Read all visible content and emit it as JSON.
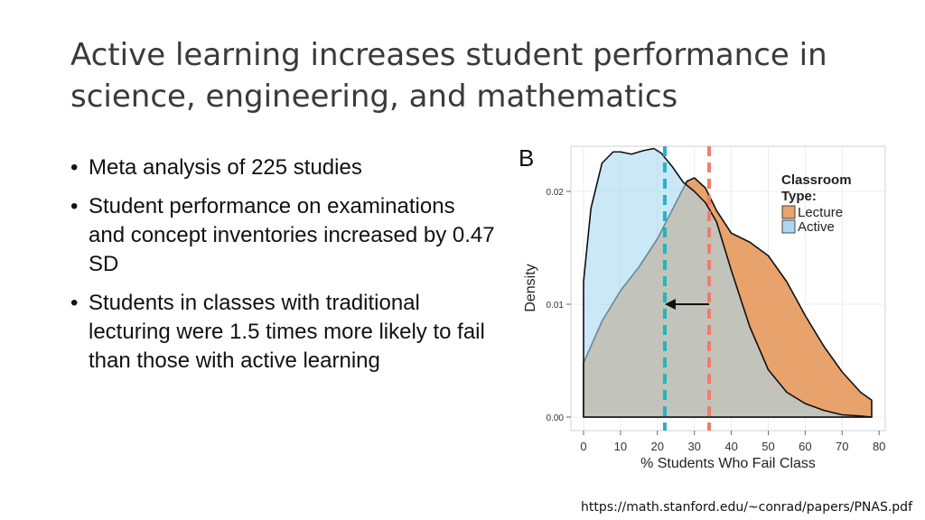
{
  "slide": {
    "title_line1": "Active learning increases student performance in",
    "title_line2": "science, engineering, and mathematics",
    "bullets": [
      "Meta analysis of 225 studies",
      "Student performance on examinations and concept inventories increased by 0.47 SD",
      "Students in classes with traditional lecturing were 1.5 times more likely to fail than those with active learning"
    ],
    "source_url": "https://math.stanford.edu/~conrad/papers/PNAS.pdf"
  },
  "chart_data": {
    "type": "area",
    "panel_label": "B",
    "xlabel": "% Students Who Fail Class",
    "ylabel": "Density",
    "xlim": [
      0,
      78
    ],
    "ylim": [
      0,
      0.024
    ],
    "x_ticks": [
      0,
      10,
      20,
      30,
      40,
      50,
      60,
      70,
      80
    ],
    "y_ticks": [
      0.0,
      0.01,
      0.02
    ],
    "y_tick_labels": [
      "0.00",
      "0.01",
      "0.02"
    ],
    "grid": true,
    "legend": {
      "title": "Classroom Type:",
      "placement": "top-right"
    },
    "series": [
      {
        "name": "Lecture",
        "color": "#e8a26b",
        "x": [
          0,
          5,
          10,
          15,
          20,
          25,
          28,
          30,
          33,
          36,
          40,
          45,
          50,
          55,
          60,
          65,
          70,
          75,
          78
        ],
        "y": [
          0.0048,
          0.0085,
          0.0112,
          0.0133,
          0.0158,
          0.019,
          0.0209,
          0.0212,
          0.0203,
          0.0183,
          0.0163,
          0.0155,
          0.0143,
          0.012,
          0.009,
          0.0063,
          0.004,
          0.0022,
          0.0015
        ],
        "mean": 34
      },
      {
        "name": "Active",
        "color": "#a9d8f0",
        "x": [
          0,
          2,
          5,
          8,
          10,
          13,
          16,
          19,
          21,
          24,
          27,
          30,
          33,
          36,
          40,
          45,
          50,
          55,
          60,
          65,
          70,
          75,
          78
        ],
        "y": [
          0.012,
          0.0185,
          0.0225,
          0.0235,
          0.0235,
          0.0233,
          0.0236,
          0.0238,
          0.0234,
          0.0222,
          0.0208,
          0.02,
          0.019,
          0.0173,
          0.013,
          0.008,
          0.0042,
          0.0022,
          0.0012,
          0.0006,
          0.0002,
          0.0001,
          0.0
        ],
        "mean": 22
      }
    ],
    "annotation": {
      "type": "arrow",
      "from_x": 34,
      "to_x": 22,
      "y": 0.01
    }
  }
}
